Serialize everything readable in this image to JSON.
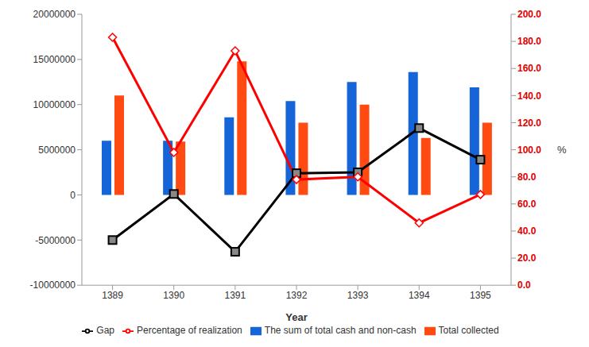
{
  "chart_data": {
    "type": "bar",
    "xlabel": "Year",
    "y2label": "%",
    "categories": [
      "1389",
      "1390",
      "1391",
      "1392",
      "1393",
      "1394",
      "1395"
    ],
    "series": [
      {
        "name": "The sum of total cash and non-cash",
        "type": "bar",
        "color": "#1565d8",
        "values": [
          6000000,
          6000000,
          8600000,
          10400000,
          12500000,
          13600000,
          11900000
        ]
      },
      {
        "name": "Total collected",
        "type": "bar",
        "color": "#ff4a12",
        "values": [
          11000000,
          5900000,
          14800000,
          8000000,
          10000000,
          6300000,
          8000000
        ]
      },
      {
        "name": "Gap",
        "type": "line",
        "color": "#000000",
        "marker": "square",
        "values": [
          -5000000,
          100000,
          -6300000,
          2400000,
          2500000,
          7400000,
          3900000
        ]
      },
      {
        "name": "Percentage of realization",
        "type": "line",
        "color": "#ff0000",
        "marker": "diamond",
        "axis": "y2",
        "values": [
          183,
          98,
          173,
          78,
          80,
          46,
          67
        ]
      }
    ],
    "ylim": [
      -10000000,
      20000000
    ],
    "yticks": [
      -10000000,
      -5000000,
      0,
      5000000,
      10000000,
      15000000,
      20000000
    ],
    "y2lim": [
      0,
      200
    ],
    "y2ticks": [
      {
        "value": 0,
        "label": "0.0"
      },
      {
        "value": 20,
        "label": "20.0"
      },
      {
        "value": 40,
        "label": "40.0"
      },
      {
        "value": 60,
        "label": "60.0"
      },
      {
        "value": 80,
        "label": "80.0"
      },
      {
        "value": 100,
        "label": "100.0"
      },
      {
        "value": 120,
        "label": "120.0"
      },
      {
        "value": 140,
        "label": "140.0"
      },
      {
        "value": 160,
        "label": "160.0"
      },
      {
        "value": 180,
        "label": "180.0"
      },
      {
        "value": 200,
        "label": "200.0"
      }
    ],
    "grid": false,
    "legend": "bottom"
  }
}
